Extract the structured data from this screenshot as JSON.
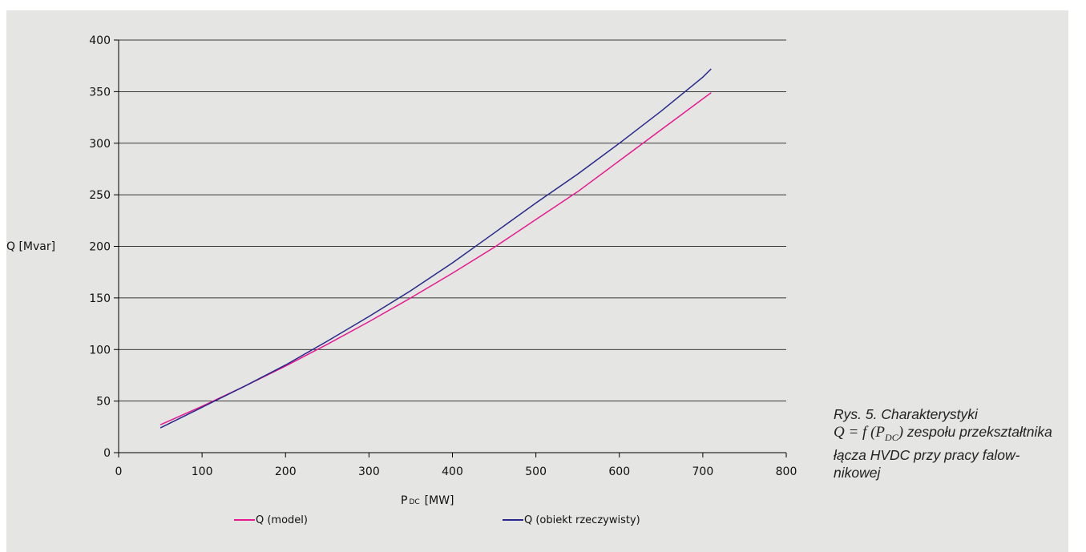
{
  "figure": {
    "caption": {
      "prefix": "Rys. 5. Charakterystyki",
      "formula_q": "Q",
      "formula_mid": " = f (P",
      "formula_sub": "DC",
      "formula_end": ")",
      "suffix": "zespołu przekształtnika łącza HVDC przy pracy falow-nikowej"
    }
  },
  "colors": {
    "panel_background": "#e5e5e4",
    "model_series": "#e6198f",
    "real_series": "#28288c",
    "grid": "#000000"
  },
  "chart_data": {
    "type": "line",
    "title": "",
    "xlabel": "P",
    "xlabel_sub": "DC",
    "xlabel_unit": "[MW]",
    "ylabel": "Q  [Mvar]",
    "xlim": [
      0,
      800
    ],
    "ylim": [
      0,
      400
    ],
    "x_ticks": [
      "0",
      "100",
      "200",
      "300",
      "400",
      "500",
      "600",
      "700",
      "800"
    ],
    "y_ticks": [
      "0",
      "50",
      "100",
      "150",
      "200",
      "250",
      "300",
      "350",
      "400"
    ],
    "grid": true,
    "legend_position": "bottom",
    "series": [
      {
        "name": "Q  (model)",
        "color": "#e6198f",
        "x": [
          50,
          100,
          150,
          200,
          250,
          300,
          350,
          400,
          450,
          500,
          550,
          600,
          650,
          700,
          710
        ],
        "y": [
          27,
          45,
          64,
          84,
          105,
          127,
          150,
          174,
          199,
          226,
          253,
          283,
          313,
          343,
          349
        ]
      },
      {
        "name": "Q  (obiekt rzeczywisty)",
        "color": "#28288c",
        "x": [
          50,
          100,
          150,
          200,
          250,
          300,
          350,
          400,
          450,
          500,
          550,
          600,
          650,
          700,
          710
        ],
        "y": [
          24,
          44,
          64,
          85,
          108,
          132,
          157,
          184,
          213,
          242,
          270,
          300,
          331,
          364,
          372
        ]
      }
    ]
  }
}
